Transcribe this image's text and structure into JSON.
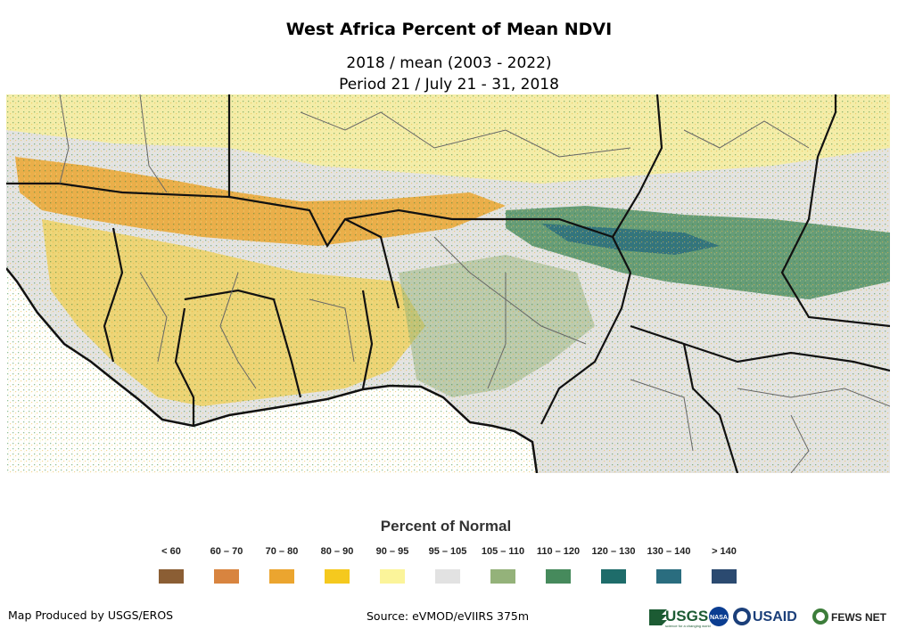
{
  "title": "West Africa Percent of Mean NDVI",
  "subtitle_1": "2018 / mean (2003 - 2022)",
  "subtitle_2": "Period 21 / July 21 - 31, 2018",
  "legend": {
    "title": "Percent of Normal",
    "items": [
      {
        "label": "< 60",
        "color": "#8b5e34"
      },
      {
        "label": "60 – 70",
        "color": "#d8843f"
      },
      {
        "label": "70 – 80",
        "color": "#eba52f"
      },
      {
        "label": "80 – 90",
        "color": "#f5c91e"
      },
      {
        "label": "90 – 95",
        "color": "#fbf49a"
      },
      {
        "label": "95 – 105",
        "color": "#e2e2e2"
      },
      {
        "label": "105 – 110",
        "color": "#94b27a"
      },
      {
        "label": "110 – 120",
        "color": "#468a5c"
      },
      {
        "label": "120 – 130",
        "color": "#1e6c6a"
      },
      {
        "label": "130 – 140",
        "color": "#2a6d7f"
      },
      {
        "label": "> 140",
        "color": "#2b4a70"
      }
    ]
  },
  "footer": {
    "produced_by": "Map Produced by USGS/EROS",
    "source": "Source: eVMOD/eVIIRS 375m"
  },
  "logos": {
    "usgs": "USGS",
    "usgs_tagline": "science for a changing world",
    "nasa": "NASA",
    "usaid": "USAID",
    "fews": "FEWS NET"
  }
}
